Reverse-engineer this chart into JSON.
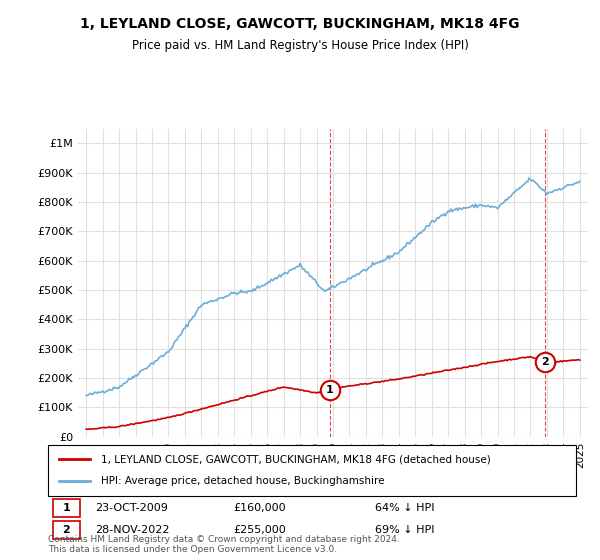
{
  "title": "1, LEYLAND CLOSE, GAWCOTT, BUCKINGHAM, MK18 4FG",
  "subtitle": "Price paid vs. HM Land Registry's House Price Index (HPI)",
  "hpi_color": "#6baed6",
  "property_color": "#cc0000",
  "sale1_date": "23-OCT-2009",
  "sale1_price": 160000,
  "sale1_label": "1",
  "sale1_pct": "64% ↓ HPI",
  "sale2_date": "28-NOV-2022",
  "sale2_price": 255000,
  "sale2_label": "2",
  "sale2_pct": "69% ↓ HPI",
  "legend_property": "1, LEYLAND CLOSE, GAWCOTT, BUCKINGHAM, MK18 4FG (detached house)",
  "legend_hpi": "HPI: Average price, detached house, Buckinghamshire",
  "footnote": "Contains HM Land Registry data © Crown copyright and database right 2024.\nThis data is licensed under the Open Government Licence v3.0.",
  "ylim": [
    0,
    1050000
  ],
  "yticks": [
    0,
    100000,
    200000,
    300000,
    400000,
    500000,
    600000,
    700000,
    800000,
    900000,
    1000000
  ],
  "ytick_labels": [
    "£0",
    "£100K",
    "£200K",
    "£300K",
    "£400K",
    "£500K",
    "£600K",
    "£700K",
    "£800K",
    "£900K",
    "£1M"
  ],
  "sale1_year": 2009.8,
  "sale2_year": 2022.9,
  "background_color": "#ffffff",
  "grid_color": "#e0e0e0"
}
